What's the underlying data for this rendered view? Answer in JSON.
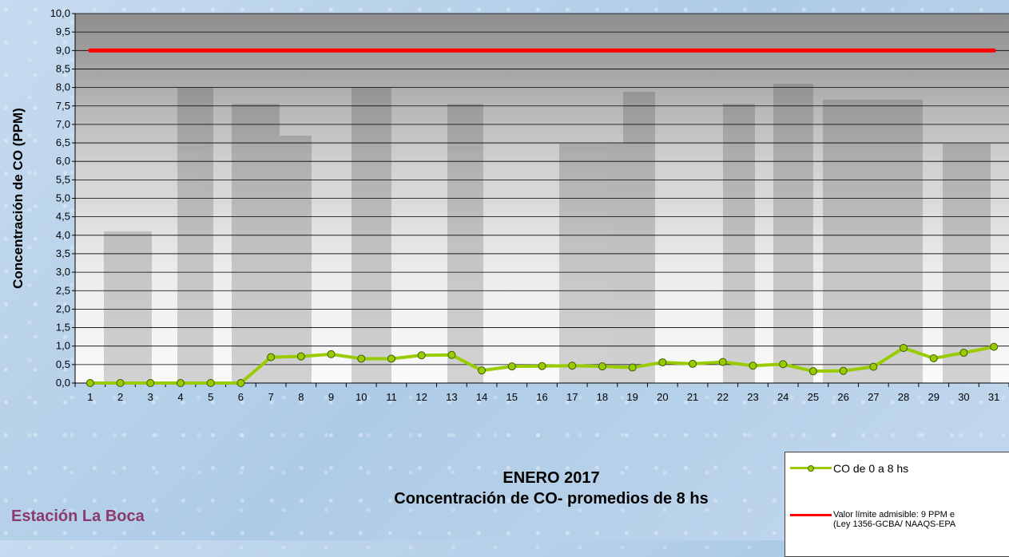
{
  "chart_data": {
    "type": "line",
    "title": "ENERO 2017",
    "subtitle": "Concentración de CO- promedios de 8 hs",
    "ylabel": "Concentración de CO (PPM)",
    "xlabel": "",
    "ylim": [
      0,
      10
    ],
    "ytick_step": 0.5,
    "grid": true,
    "legend_position": "bottom-right",
    "x": [
      "1",
      "2",
      "3",
      "4",
      "5",
      "6",
      "7",
      "8",
      "9",
      "10",
      "11",
      "12",
      "13",
      "14",
      "15",
      "16",
      "17",
      "18",
      "19",
      "20",
      "21",
      "22",
      "23",
      "24",
      "25",
      "26",
      "27",
      "28",
      "29",
      "30",
      "31"
    ],
    "y_tick_labels": [
      "0,0",
      "0,5",
      "1,0",
      "1,5",
      "2,0",
      "2,5",
      "3,0",
      "3,5",
      "4,0",
      "4,5",
      "5,0",
      "5,5",
      "6,0",
      "6,5",
      "7,0",
      "7,5",
      "8,0",
      "8,5",
      "9,0",
      "9,5",
      "10,0"
    ],
    "series": [
      {
        "name": "CO de 0 a 8 hs",
        "color": "#99cc00",
        "values": [
          0.0,
          0.0,
          0.0,
          0.0,
          0.0,
          0.0,
          0.7,
          0.72,
          0.78,
          0.66,
          0.66,
          0.75,
          0.76,
          0.34,
          0.45,
          0.46,
          0.47,
          0.45,
          0.42,
          0.56,
          0.52,
          0.57,
          0.47,
          0.51,
          0.32,
          0.33,
          0.44,
          0.95,
          0.67,
          0.82,
          0.98
        ]
      },
      {
        "name": "Valor límite admisible: 9 PPM e",
        "name_line2": "(Ley 1356-GCBA/ NAAQS-EPA",
        "color": "#ff0000",
        "values": [
          9,
          9,
          9,
          9,
          9,
          9,
          9,
          9,
          9,
          9,
          9,
          9,
          9,
          9,
          9,
          9,
          9,
          9,
          9,
          9,
          9,
          9,
          9,
          9,
          9,
          9,
          9,
          9,
          9,
          9,
          9
        ]
      }
    ]
  },
  "station": "Estación La Boca"
}
